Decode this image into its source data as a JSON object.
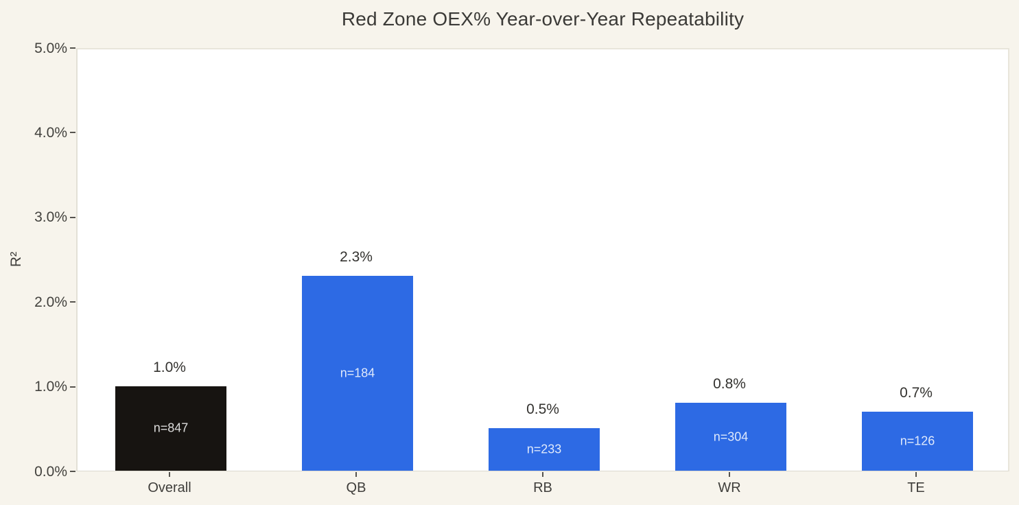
{
  "page": {
    "background_color": "#f7f4ec",
    "plot_background_color": "#ffffff"
  },
  "chart_data": {
    "type": "bar",
    "title": "Red Zone OEX% Year-over-Year Repeatability",
    "xlabel": "",
    "ylabel": "R²",
    "categories": [
      "Overall",
      "QB",
      "RB",
      "WR",
      "TE"
    ],
    "values": [
      1.0,
      2.3,
      0.5,
      0.8,
      0.7
    ],
    "bar_value_labels": [
      "1.0%",
      "2.3%",
      "0.5%",
      "0.8%",
      "0.7%"
    ],
    "bar_inner_labels": [
      "n=847",
      "n=184",
      "n=233",
      "n=304",
      "n=126"
    ],
    "sample_sizes": [
      847,
      184,
      233,
      304,
      126
    ],
    "bar_colors": [
      "#171411",
      "#2d6ae4",
      "#2d6ae4",
      "#2d6ae4",
      "#2d6ae4"
    ],
    "ylim": [
      0,
      5
    ],
    "ytick_values": [
      0,
      1,
      2,
      3,
      4,
      5
    ],
    "ytick_labels": [
      "0.0%",
      "1.0%",
      "2.0%",
      "3.0%",
      "4.0%",
      "5.0%"
    ],
    "grid": false,
    "legend_position": "none",
    "colors": {
      "accent_blue": "#2d6ae4",
      "overall_black": "#171411",
      "title_text": "#3b3a37",
      "tick_text": "#43423e",
      "inner_label_text": "#ffffff"
    }
  }
}
